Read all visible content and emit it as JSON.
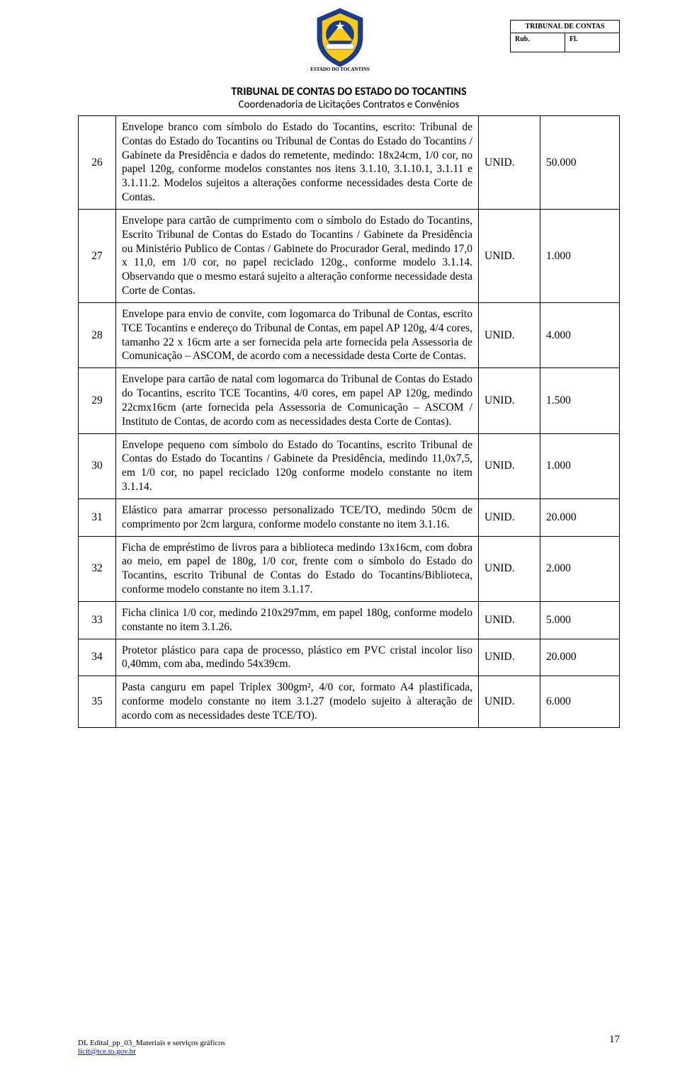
{
  "header_box": {
    "title": "TRIBUNAL DE CONTAS",
    "rub": "Rub.",
    "fl": "Fl."
  },
  "logo": {
    "label": "ESTADO DO TOCANTINS",
    "colors": {
      "blue": "#1e3a8a",
      "yellow": "#facc15",
      "red": "#dc2626",
      "white": "#ffffff"
    }
  },
  "titles": {
    "line1": "TRIBUNAL DE CONTAS DO ESTADO DO TOCANTINS",
    "line2": "Coordenadoria de Licitações Contratos e Convênios"
  },
  "rows": [
    {
      "n": "26",
      "desc": "Envelope branco com símbolo do Estado do Tocantins, escrito: Tribunal de Contas do Estado do Tocantins ou Tribunal de Contas do Estado do Tocantins / Gabinete da Presidência e dados do remetente, medindo: 18x24cm, 1/0 cor, no papel 120g, conforme modelos constantes nos itens 3.1.10, 3.1.10.1, 3.1.11 e 3.1.11.2. Modelos sujeitos a alterações conforme necessidades desta Corte de Contas.",
      "unit": "UNID.",
      "qty": "50.000",
      "sep": true
    },
    {
      "n": "27",
      "desc": "Envelope para cartão de cumprimento com o símbolo do Estado do Tocantins, Escrito Tribunal de Contas do Estado do Tocantins / Gabinete da Presidência ou Ministério Publico de Contas / Gabinete do Procurador Geral, medindo 17,0 x 11,0, em 1/0 cor, no papel reciclado 120g., conforme modelo 3.1.14. Observando que o mesmo estará sujeito a alteração conforme necessidade desta Corte de Contas.",
      "unit": "UNID.",
      "qty": "1.000",
      "sep": true
    },
    {
      "n": "28",
      "desc": "Envelope para envio de convite, com logomarca do Tribunal de Contas, escrito TCE Tocantins e endereço do Tribunal de Contas, em papel AP 120g, 4/4 cores, tamanho 22 x 16cm arte a ser fornecida pela arte fornecida pela Assessoria de Comunicação – ASCOM, de acordo com a necessidade desta Corte de Contas.",
      "unit": "UNID.",
      "qty": "4.000",
      "sep": true
    },
    {
      "n": "29",
      "desc": "Envelope para cartão de natal com logomarca do Tribunal de Contas do Estado do Tocantins, escrito TCE Tocantins, 4/0 cores, em papel AP 120g, medindo 22cmx16cm (arte fornecida pela Assessoria de Comunicação – ASCOM / Instituto de Contas, de acordo com as necessidades desta Corte de Contas).",
      "unit": "UNID.",
      "qty": "1.500"
    },
    {
      "n": "30",
      "desc": "Envelope pequeno com símbolo do Estado do Tocantins, escrito Tribunal de Contas do Estado do Tocantins / Gabinete da Presidência, medindo 11,0x7,5, em 1/0 cor, no papel reciclado 120g conforme modelo constante no item 3.1.14.",
      "unit": "UNID.",
      "qty": "1.000"
    },
    {
      "n": "31",
      "desc": "Elástico para amarrar processo personalizado TCE/TO, medindo 50cm de comprimento por 2cm largura, conforme modelo constante no item 3.1.16.",
      "unit": "UNID.",
      "qty": "20.000"
    },
    {
      "n": "32",
      "desc": "Ficha de empréstimo de livros para a biblioteca medindo 13x16cm, com dobra ao meio, em papel de 180g, 1/0 cor, frente com o símbolo do Estado do Tocantins, escrito Tribunal de Contas do Estado do Tocantins/Biblioteca, conforme modelo constante no item 3.1.17.",
      "unit": "UNID.",
      "qty": "2.000"
    },
    {
      "n": "33",
      "desc": "Ficha clinica 1/0 cor, medindo 210x297mm, em papel 180g, conforme modelo constante no item 3.1.26.",
      "unit": "UNID.",
      "qty": "5.000"
    },
    {
      "n": "34",
      "desc": "Protetor plástico para capa de processo, plástico em PVC cristal incolor liso 0,40mm, com aba, medindo 54x39cm.",
      "unit": "UNID.",
      "qty": "20.000"
    },
    {
      "n": "35",
      "desc": "Pasta canguru em papel Triplex 300gm², 4/0 cor, formato A4 plastificada, conforme modelo constante no item 3.1.27 (modelo sujeito à alteração de acordo com as necessidades deste TCE/TO).",
      "unit": "UNID.",
      "qty": "6.000"
    }
  ],
  "footer": {
    "line1": "DL Edital_pp_03_Materiais e serviços gráficos",
    "email": "licit@tce.to.gov.br",
    "page": "17"
  }
}
